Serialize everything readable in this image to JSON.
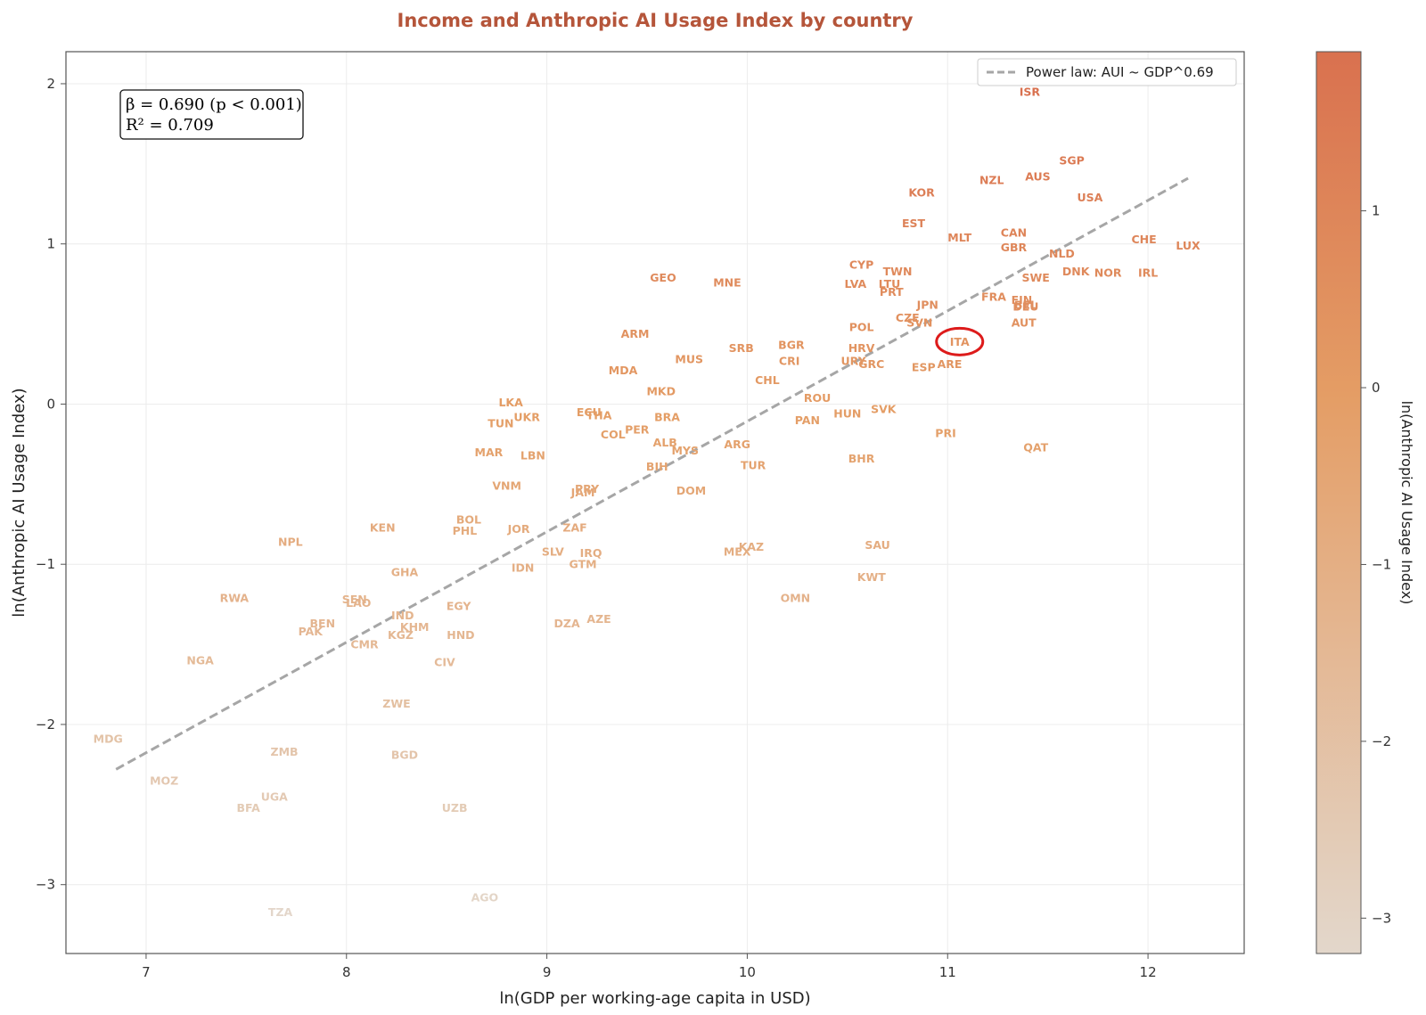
{
  "colors": {
    "title": "#b5553a",
    "high": "#d9714f",
    "mid": "#e49d65",
    "low": "#e3d7cb",
    "fit_line": "#a6a6a6",
    "highlight": "#dd1b1b",
    "grid": "#ececec"
  },
  "chart_data": {
    "type": "scatter",
    "title": "Income and Anthropic AI Usage Index by country",
    "xlabel": "ln(GDP per working-age capita in USD)",
    "ylabel": "ln(Anthropic AI Usage Index)",
    "xlim": [
      6.6,
      12.48
    ],
    "ylim": [
      -3.43,
      2.2
    ],
    "xticks": [
      7,
      8,
      9,
      10,
      11,
      12
    ],
    "yticks": [
      -3,
      -2,
      -1,
      0,
      1,
      2
    ],
    "xtick_labels": [
      "7",
      "8",
      "9",
      "10",
      "11",
      "12"
    ],
    "ytick_labels": [
      "−3",
      "−2",
      "−1",
      "0",
      "1",
      "2"
    ],
    "grid": true,
    "legend": {
      "position": "top-right",
      "entries": [
        "Power law: AUI ~ GDP^0.69"
      ]
    },
    "stats_box": {
      "line1": "β = 0.690 (p < 0.001)",
      "line2": "R² = 0.709"
    },
    "fit_line": {
      "x": [
        6.85,
        12.2
      ],
      "y": [
        -2.28,
        1.41
      ]
    },
    "highlighted": "ITA",
    "colorbar": {
      "label": "ln(Anthropic AI Usage Index)",
      "range": [
        -3.2,
        1.9
      ],
      "ticks": [
        1,
        0,
        -1,
        -2,
        -3
      ],
      "tick_labels": [
        "1",
        "0",
        "−1",
        "−2",
        "−3"
      ]
    },
    "points": [
      {
        "label": "ISR",
        "x": 11.41,
        "y": 1.95
      },
      {
        "label": "SGP",
        "x": 11.62,
        "y": 1.52
      },
      {
        "label": "NZL",
        "x": 11.22,
        "y": 1.4
      },
      {
        "label": "AUS",
        "x": 11.45,
        "y": 1.42
      },
      {
        "label": "KOR",
        "x": 10.87,
        "y": 1.32
      },
      {
        "label": "USA",
        "x": 11.71,
        "y": 1.29
      },
      {
        "label": "EST",
        "x": 10.83,
        "y": 1.13
      },
      {
        "label": "CAN",
        "x": 11.33,
        "y": 1.07
      },
      {
        "label": "MLT",
        "x": 11.06,
        "y": 1.04
      },
      {
        "label": "GBR",
        "x": 11.33,
        "y": 0.98
      },
      {
        "label": "CHE",
        "x": 11.98,
        "y": 1.03
      },
      {
        "label": "LUX",
        "x": 12.2,
        "y": 0.99
      },
      {
        "label": "NLD",
        "x": 11.57,
        "y": 0.94
      },
      {
        "label": "CYP",
        "x": 10.57,
        "y": 0.87
      },
      {
        "label": "TWN",
        "x": 10.75,
        "y": 0.83
      },
      {
        "label": "DNK",
        "x": 11.64,
        "y": 0.83
      },
      {
        "label": "NOR",
        "x": 11.8,
        "y": 0.82
      },
      {
        "label": "IRL",
        "x": 12.0,
        "y": 0.82
      },
      {
        "label": "SWE",
        "x": 11.44,
        "y": 0.79
      },
      {
        "label": "GEO",
        "x": 9.58,
        "y": 0.79
      },
      {
        "label": "MNE",
        "x": 9.9,
        "y": 0.76
      },
      {
        "label": "LVA",
        "x": 10.54,
        "y": 0.75
      },
      {
        "label": "LTU",
        "x": 10.71,
        "y": 0.75
      },
      {
        "label": "PRT",
        "x": 10.72,
        "y": 0.7
      },
      {
        "label": "FRA",
        "x": 11.23,
        "y": 0.67
      },
      {
        "label": "FIN",
        "x": 11.37,
        "y": 0.65
      },
      {
        "label": "BEL",
        "x": 11.39,
        "y": 0.62
      },
      {
        "label": "DEU",
        "x": 11.39,
        "y": 0.61
      },
      {
        "label": "JPN",
        "x": 10.9,
        "y": 0.62
      },
      {
        "label": "CZE",
        "x": 10.8,
        "y": 0.54
      },
      {
        "label": "SVN",
        "x": 10.86,
        "y": 0.51
      },
      {
        "label": "AUT",
        "x": 11.38,
        "y": 0.51
      },
      {
        "label": "POL",
        "x": 10.57,
        "y": 0.48
      },
      {
        "label": "ITA",
        "x": 11.06,
        "y": 0.39
      },
      {
        "label": "ARM",
        "x": 9.44,
        "y": 0.44
      },
      {
        "label": "SRB",
        "x": 9.97,
        "y": 0.35
      },
      {
        "label": "BGR",
        "x": 10.22,
        "y": 0.37
      },
      {
        "label": "HRV",
        "x": 10.57,
        "y": 0.35
      },
      {
        "label": "MUS",
        "x": 9.71,
        "y": 0.28
      },
      {
        "label": "CRI",
        "x": 10.21,
        "y": 0.27
      },
      {
        "label": "URY",
        "x": 10.53,
        "y": 0.27
      },
      {
        "label": "GRC",
        "x": 10.62,
        "y": 0.25
      },
      {
        "label": "ESP",
        "x": 10.88,
        "y": 0.23
      },
      {
        "label": "ARE",
        "x": 11.01,
        "y": 0.25
      },
      {
        "label": "MDA",
        "x": 9.38,
        "y": 0.21
      },
      {
        "label": "CHL",
        "x": 10.1,
        "y": 0.15
      },
      {
        "label": "MKD",
        "x": 9.57,
        "y": 0.08
      },
      {
        "label": "ROU",
        "x": 10.35,
        "y": 0.04
      },
      {
        "label": "LKA",
        "x": 8.82,
        "y": 0.01
      },
      {
        "label": "ECU",
        "x": 9.21,
        "y": -0.05
      },
      {
        "label": "THA",
        "x": 9.26,
        "y": -0.07
      },
      {
        "label": "BRA",
        "x": 9.6,
        "y": -0.08
      },
      {
        "label": "HUN",
        "x": 10.5,
        "y": -0.06
      },
      {
        "label": "SVK",
        "x": 10.68,
        "y": -0.03
      },
      {
        "label": "UKR",
        "x": 8.9,
        "y": -0.08
      },
      {
        "label": "TUN",
        "x": 8.77,
        "y": -0.12
      },
      {
        "label": "PAN",
        "x": 10.3,
        "y": -0.1
      },
      {
        "label": "PRI",
        "x": 10.99,
        "y": -0.18
      },
      {
        "label": "PER",
        "x": 9.45,
        "y": -0.16
      },
      {
        "label": "COL",
        "x": 9.33,
        "y": -0.19
      },
      {
        "label": "ALB",
        "x": 9.59,
        "y": -0.24
      },
      {
        "label": "ARG",
        "x": 9.95,
        "y": -0.25
      },
      {
        "label": "QAT",
        "x": 11.44,
        "y": -0.27
      },
      {
        "label": "MAR",
        "x": 8.71,
        "y": -0.3
      },
      {
        "label": "MYS",
        "x": 9.69,
        "y": -0.29
      },
      {
        "label": "LBN",
        "x": 8.93,
        "y": -0.32
      },
      {
        "label": "BHR",
        "x": 10.57,
        "y": -0.34
      },
      {
        "label": "BIH",
        "x": 9.55,
        "y": -0.39
      },
      {
        "label": "TUR",
        "x": 10.03,
        "y": -0.38
      },
      {
        "label": "VNM",
        "x": 8.8,
        "y": -0.51
      },
      {
        "label": "PRY",
        "x": 9.2,
        "y": -0.53
      },
      {
        "label": "JAM",
        "x": 9.18,
        "y": -0.55
      },
      {
        "label": "DOM",
        "x": 9.72,
        "y": -0.54
      },
      {
        "label": "BOL",
        "x": 8.61,
        "y": -0.72
      },
      {
        "label": "PHL",
        "x": 8.59,
        "y": -0.79
      },
      {
        "label": "JOR",
        "x": 8.86,
        "y": -0.78
      },
      {
        "label": "ZAF",
        "x": 9.14,
        "y": -0.77
      },
      {
        "label": "KEN",
        "x": 8.18,
        "y": -0.77
      },
      {
        "label": "NPL",
        "x": 7.72,
        "y": -0.86
      },
      {
        "label": "SLV",
        "x": 9.03,
        "y": -0.92
      },
      {
        "label": "IRQ",
        "x": 9.22,
        "y": -0.93
      },
      {
        "label": "MEX",
        "x": 9.95,
        "y": -0.92
      },
      {
        "label": "KAZ",
        "x": 10.02,
        "y": -0.89
      },
      {
        "label": "SAU",
        "x": 10.65,
        "y": -0.88
      },
      {
        "label": "IDN",
        "x": 8.88,
        "y": -1.02
      },
      {
        "label": "GTM",
        "x": 9.18,
        "y": -1.0
      },
      {
        "label": "GHA",
        "x": 8.29,
        "y": -1.05
      },
      {
        "label": "KWT",
        "x": 10.62,
        "y": -1.08
      },
      {
        "label": "RWA",
        "x": 7.44,
        "y": -1.21
      },
      {
        "label": "SEN",
        "x": 8.04,
        "y": -1.22
      },
      {
        "label": "LAO",
        "x": 8.06,
        "y": -1.24
      },
      {
        "label": "OMN",
        "x": 10.24,
        "y": -1.21
      },
      {
        "label": "EGY",
        "x": 8.56,
        "y": -1.26
      },
      {
        "label": "IND",
        "x": 8.28,
        "y": -1.32
      },
      {
        "label": "AZE",
        "x": 9.26,
        "y": -1.34
      },
      {
        "label": "DZA",
        "x": 9.1,
        "y": -1.37
      },
      {
        "label": "BEN",
        "x": 7.88,
        "y": -1.37
      },
      {
        "label": "KHM",
        "x": 8.34,
        "y": -1.39
      },
      {
        "label": "PAK",
        "x": 7.82,
        "y": -1.42
      },
      {
        "label": "KGZ",
        "x": 8.27,
        "y": -1.44
      },
      {
        "label": "HND",
        "x": 8.57,
        "y": -1.44
      },
      {
        "label": "CMR",
        "x": 8.09,
        "y": -1.5
      },
      {
        "label": "NGA",
        "x": 7.27,
        "y": -1.6
      },
      {
        "label": "CIV",
        "x": 8.49,
        "y": -1.61
      },
      {
        "label": "ZWE",
        "x": 8.25,
        "y": -1.87
      },
      {
        "label": "MDG",
        "x": 6.81,
        "y": -2.09
      },
      {
        "label": "ZMB",
        "x": 7.69,
        "y": -2.17
      },
      {
        "label": "BGD",
        "x": 8.29,
        "y": -2.19
      },
      {
        "label": "MOZ",
        "x": 7.09,
        "y": -2.35
      },
      {
        "label": "UGA",
        "x": 7.64,
        "y": -2.45
      },
      {
        "label": "BFA",
        "x": 7.51,
        "y": -2.52
      },
      {
        "label": "UZB",
        "x": 8.54,
        "y": -2.52
      },
      {
        "label": "AGO",
        "x": 8.69,
        "y": -3.08
      },
      {
        "label": "TZA",
        "x": 7.67,
        "y": -3.17
      }
    ]
  }
}
